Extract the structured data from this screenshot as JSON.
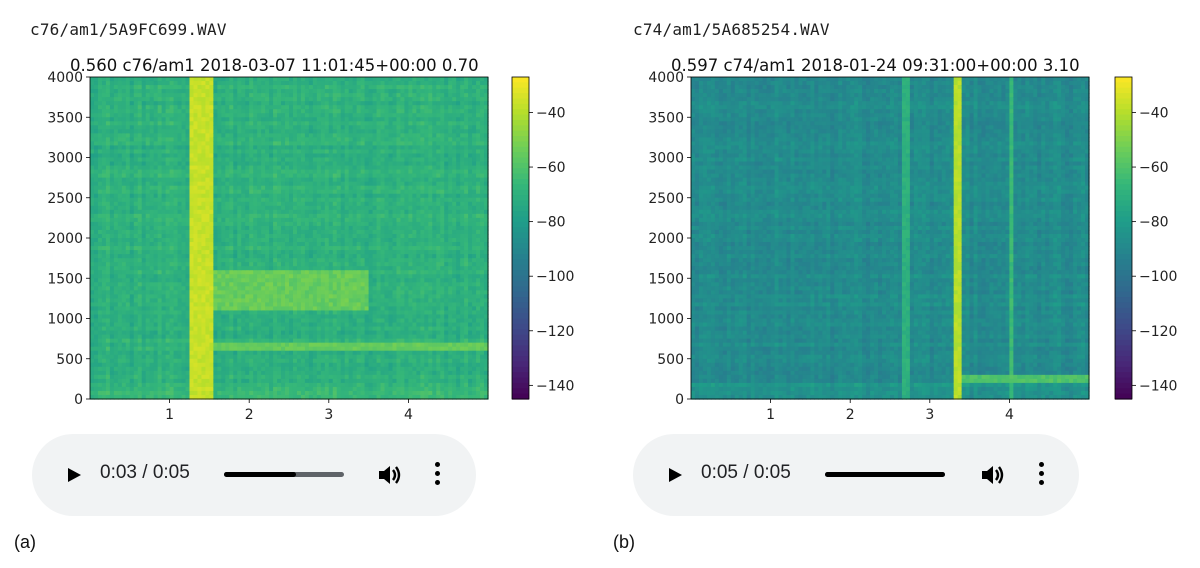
{
  "panels": [
    {
      "filename": "c76/am1/5A9FC699.WAV",
      "title": "0.560 c76/am1 2018-03-07 11:01:45+00:00 0.70",
      "caption": "(a)",
      "player": {
        "time": "0:03 / 0:05",
        "progress": 0.6
      }
    },
    {
      "filename": "c74/am1/5A685254.WAV",
      "title": "0.597 c74/am1 2018-01-24 09:31:00+00:00 3.10",
      "caption": "(b)",
      "player": {
        "time": "0:05 / 0:05",
        "progress": 1.0
      }
    }
  ],
  "chart_data": [
    {
      "type": "heatmap",
      "title": "0.560 c76/am1 2018-03-07 11:01:45+00:00 0.70",
      "x_ticks": [
        "1",
        "2",
        "3",
        "4"
      ],
      "x_tick_values": [
        1,
        2,
        3,
        4
      ],
      "xlim": [
        0,
        5
      ],
      "y_ticks": [
        "0",
        "500",
        "1000",
        "1500",
        "2000",
        "2500",
        "3000",
        "3500",
        "4000"
      ],
      "y_tick_values": [
        0,
        500,
        1000,
        1500,
        2000,
        2500,
        3000,
        3500,
        4000
      ],
      "ylim": [
        0,
        4000
      ],
      "colorbar_ticks": [
        "−40",
        "−60",
        "−80",
        "−100",
        "−120",
        "−140"
      ],
      "colorbar_tick_values": [
        -40,
        -60,
        -80,
        -100,
        -120,
        -140
      ],
      "colorbar_range": [
        -145,
        -27
      ],
      "colormap": "viridis",
      "features": [
        {
          "kind": "vertical_band",
          "x": [
            1.25,
            1.55
          ],
          "level_db": -37
        },
        {
          "kind": "broadband_region",
          "x": [
            1.55,
            3.5
          ],
          "y": [
            1100,
            1600
          ],
          "level_db": -55
        },
        {
          "kind": "horizontal_band",
          "y": [
            600,
            720
          ],
          "x": [
            1.25,
            5.0
          ],
          "level_db": -55
        },
        {
          "kind": "background",
          "level_db": -70
        }
      ]
    },
    {
      "type": "heatmap",
      "title": "0.597 c74/am1 2018-01-24 09:31:00+00:00 3.10",
      "x_ticks": [
        "1",
        "2",
        "3",
        "4"
      ],
      "x_tick_values": [
        1,
        2,
        3,
        4
      ],
      "xlim": [
        0,
        5
      ],
      "y_ticks": [
        "0",
        "500",
        "1000",
        "1500",
        "2000",
        "2500",
        "3000",
        "3500",
        "4000"
      ],
      "y_tick_values": [
        0,
        500,
        1000,
        1500,
        2000,
        2500,
        3000,
        3500,
        4000
      ],
      "ylim": [
        0,
        4000
      ],
      "colorbar_ticks": [
        "−40",
        "−60",
        "−80",
        "−100",
        "−120",
        "−140"
      ],
      "colorbar_tick_values": [
        -40,
        -60,
        -80,
        -100,
        -120,
        -140
      ],
      "colorbar_range": [
        -145,
        -27
      ],
      "colormap": "viridis",
      "features": [
        {
          "kind": "vertical_band",
          "x": [
            3.32,
            3.42
          ],
          "level_db": -40
        },
        {
          "kind": "vertical_band",
          "x": [
            4.0,
            4.05
          ],
          "level_db": -65
        },
        {
          "kind": "vertical_band",
          "x": [
            2.65,
            2.75
          ],
          "level_db": -70
        },
        {
          "kind": "horizontal_band",
          "y": [
            200,
            320
          ],
          "x": [
            3.32,
            5.0
          ],
          "level_db": -60
        },
        {
          "kind": "background",
          "level_db": -88
        }
      ]
    }
  ]
}
